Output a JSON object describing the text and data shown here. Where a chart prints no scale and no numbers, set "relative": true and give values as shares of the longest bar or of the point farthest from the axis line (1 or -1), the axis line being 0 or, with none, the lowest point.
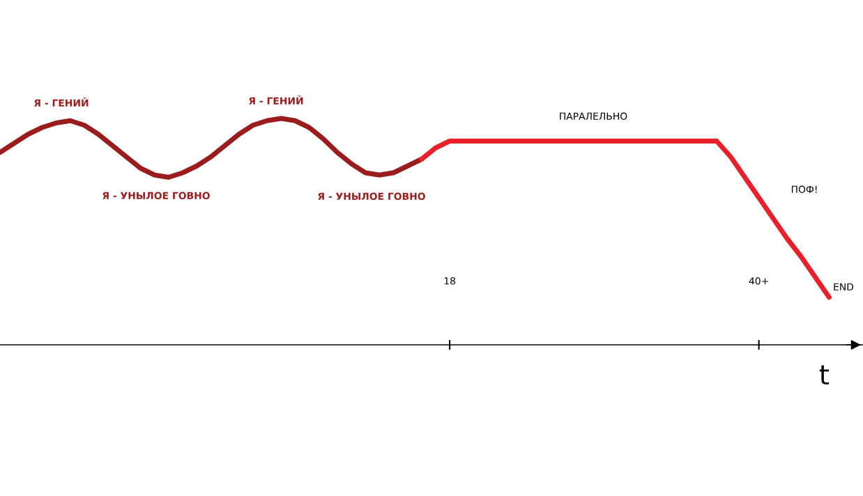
{
  "chart_data": {
    "type": "line",
    "relative": true,
    "xlabel": "t",
    "categories": [
      null,
      null,
      null,
      null,
      null,
      null,
      null,
      null,
      null,
      null,
      null,
      null,
      null,
      null,
      null,
      null,
      null,
      null,
      null,
      null,
      null,
      null,
      null,
      null,
      null,
      null,
      null,
      null,
      null,
      null,
      null,
      null,
      "18",
      null,
      null,
      null,
      null,
      null,
      null,
      null,
      null,
      null,
      null,
      null,
      null,
      null,
      null,
      null,
      null,
      null,
      null,
      null,
      null,
      null,
      "40+",
      null,
      null,
      null,
      null,
      null
    ],
    "grid": false,
    "legend": false,
    "marker": "none",
    "line_style": "solid",
    "series": [
      {
        "color": "#9b1c1c",
        "values": [
          0.85,
          0.89,
          0.93,
          0.96,
          0.98,
          0.99,
          0.97,
          0.93,
          0.88,
          0.83,
          0.78,
          0.75,
          0.74,
          0.76,
          0.79,
          0.83,
          0.88,
          0.93,
          0.97,
          0.99,
          1.0,
          0.99,
          0.96,
          0.91,
          0.85,
          0.8,
          0.76,
          0.75,
          0.76,
          0.79,
          0.82,
          null,
          null,
          null,
          null,
          null,
          null,
          null,
          null,
          null,
          null,
          null,
          null,
          null,
          null,
          null,
          null,
          null,
          null,
          null,
          null,
          null,
          null,
          null,
          null,
          null,
          null,
          null,
          null,
          null
        ]
      },
      {
        "color": "#e8202a",
        "values": [
          null,
          null,
          null,
          null,
          null,
          null,
          null,
          null,
          null,
          null,
          null,
          null,
          null,
          null,
          null,
          null,
          null,
          null,
          null,
          null,
          null,
          null,
          null,
          null,
          null,
          null,
          null,
          null,
          null,
          null,
          0.82,
          0.87,
          0.9,
          0.9,
          0.9,
          0.9,
          0.9,
          0.9,
          0.9,
          0.9,
          0.9,
          0.9,
          0.9,
          0.9,
          0.9,
          0.9,
          0.9,
          0.9,
          0.9,
          0.9,
          0.9,
          0.9,
          0.83,
          0.74,
          0.65,
          0.56,
          0.47,
          0.39,
          0.3,
          0.21
        ]
      }
    ],
    "annotations": [
      "Я - ГЕНИЙ",
      "Я - УНЫЛОЕ ГОВНО",
      "Я - ГЕНИЙ",
      "Я - УНЫЛОЕ ГОВНО",
      "ПАРАЛЕЛЬНО",
      "ПОФ!",
      "END"
    ]
  }
}
